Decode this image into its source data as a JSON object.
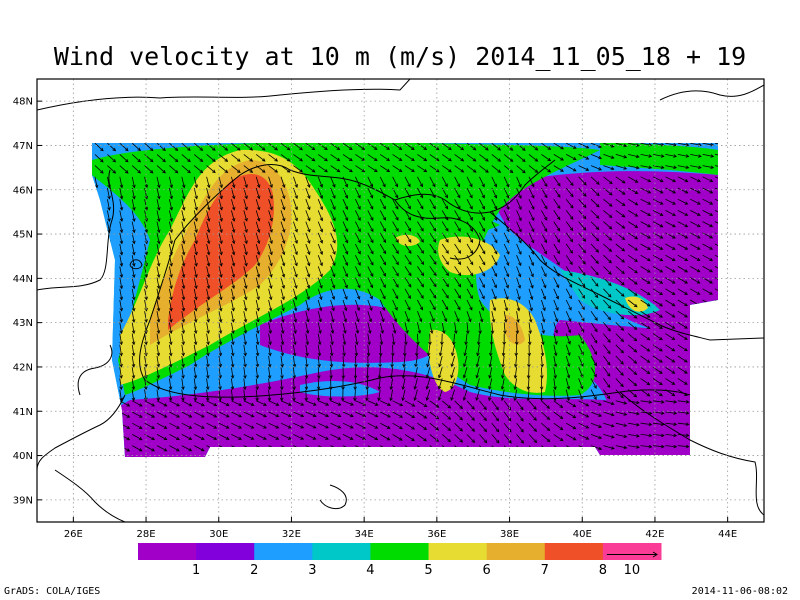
{
  "title": "Wind velocity at 10 m (m/s) 2014_11_05_18 + 19",
  "lon_ticks": [
    "26E",
    "28E",
    "30E",
    "32E",
    "34E",
    "36E",
    "38E",
    "40E",
    "42E",
    "44E"
  ],
  "lat_ticks": [
    "48N",
    "47N",
    "46N",
    "45N",
    "44N",
    "43N",
    "42N",
    "41N",
    "40N",
    "39N"
  ],
  "colorbar": {
    "colors": [
      "#a000c8",
      "#8200dc",
      "#1e9eff",
      "#00c8c8",
      "#00dc00",
      "#e6dc32",
      "#e6af2d",
      "#f05028",
      "#fa3c96"
    ],
    "labels": [
      "1",
      "2",
      "3",
      "4",
      "5",
      "6",
      "7",
      "8"
    ],
    "vector_ref_label": "10"
  },
  "footer": {
    "left": "GrADS: COLA/IGES",
    "right": "2014-11-06-08:02"
  },
  "chart_data": {
    "type": "heatmap",
    "title": "Wind velocity at 10 m (m/s) 2014_11_05_18 + 19",
    "xlim": [
      25,
      45
    ],
    "ylim": [
      38.5,
      48.5
    ],
    "x_ticks": [
      26,
      28,
      30,
      32,
      34,
      36,
      38,
      40,
      42,
      44
    ],
    "y_ticks": [
      48,
      47,
      46,
      45,
      44,
      43,
      42,
      41,
      40,
      39
    ],
    "grid": true,
    "levels": [
      1,
      2,
      3,
      4,
      5,
      6,
      7,
      8
    ],
    "vector_reference_ms": 10
  }
}
